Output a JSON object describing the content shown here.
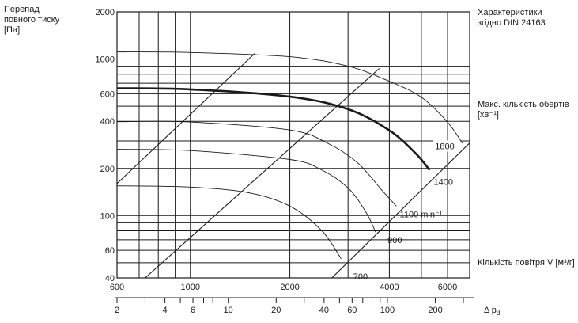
{
  "chart_data": {
    "type": "line",
    "title": "",
    "ylabel": [
      "Перепад",
      "повного тиску",
      "[Па]"
    ],
    "xlabel": "Кількість повітря V [м³/г]",
    "x_scale": "log",
    "y_scale": "log",
    "xlim": [
      600,
      7000
    ],
    "ylim": [
      40,
      2000
    ],
    "x_ticks": [
      {
        "label": "600",
        "value": 600
      },
      {
        "label": "1000",
        "value": 1000
      },
      {
        "label": "2000",
        "value": 2000
      },
      {
        "label": "4000",
        "value": 4000
      },
      {
        "label": "6000",
        "value": 6000
      }
    ],
    "y_ticks": [
      {
        "label": "40",
        "value": 40
      },
      {
        "label": "60",
        "value": 60
      },
      {
        "label": "100",
        "value": 100
      },
      {
        "label": "200",
        "value": 200
      },
      {
        "label": "400",
        "value": 400
      },
      {
        "label": "600",
        "value": 600
      },
      {
        "label": "1000",
        "value": 1000
      },
      {
        "label": "2000",
        "value": 2000
      }
    ],
    "x_grid": [
      700,
      800,
      900,
      1000,
      2000,
      3000,
      4000,
      5000,
      6000
    ],
    "y_grid": [
      50,
      60,
      70,
      80,
      90,
      100,
      200,
      300,
      400,
      500,
      600,
      700,
      800,
      900,
      1000
    ],
    "grid": true,
    "secondary_axis": {
      "label": "Δ p",
      "label_sub": "d",
      "tick_values": [
        2,
        3,
        4,
        5,
        6,
        7,
        8,
        9,
        10,
        20,
        30,
        40,
        50,
        60,
        70,
        80,
        90,
        100,
        200,
        300
      ],
      "labels": [
        {
          "label": "2",
          "value": 2
        },
        {
          "label": "4",
          "value": 4
        },
        {
          "label": "6",
          "value": 6
        },
        {
          "label": "10",
          "value": 10
        },
        {
          "label": "20",
          "value": 20
        },
        {
          "label": "40",
          "value": 40
        },
        {
          "label": "60",
          "value": 60
        },
        {
          "label": "100",
          "value": 100
        },
        {
          "label": "200",
          "value": 200
        }
      ]
    },
    "series": [
      {
        "name": "700",
        "bold": false,
        "points": [
          [
            600,
            155
          ],
          [
            1000,
            152
          ],
          [
            1500,
            140
          ],
          [
            2000,
            115
          ],
          [
            2500,
            80
          ],
          [
            2860,
            53
          ]
        ],
        "label_point": [
          3110,
          41
        ]
      },
      {
        "name": "900",
        "bold": false,
        "points": [
          [
            600,
            265
          ],
          [
            1000,
            260
          ],
          [
            2000,
            228
          ],
          [
            2500,
            195
          ],
          [
            3000,
            150
          ],
          [
            3400,
            105
          ],
          [
            3640,
            78
          ]
        ],
        "label_point": [
          3950,
          70
        ]
      },
      {
        "name": "1100 min⁻¹",
        "bold": false,
        "points": [
          [
            600,
            398
          ],
          [
            1000,
            396
          ],
          [
            2000,
            352
          ],
          [
            2600,
            290
          ],
          [
            3200,
            218
          ],
          [
            3800,
            145
          ],
          [
            4200,
            115
          ]
        ],
        "label_point": [
          4300,
          102
        ]
      },
      {
        "name": "1400",
        "bold": true,
        "points": [
          [
            600,
            650
          ],
          [
            1000,
            640
          ],
          [
            2000,
            575
          ],
          [
            3000,
            478
          ],
          [
            4000,
            350
          ],
          [
            4800,
            250
          ],
          [
            5300,
            195
          ]
        ],
        "label_point": [
          5450,
          165
        ]
      },
      {
        "name": "1800",
        "bold": false,
        "points": [
          [
            600,
            1110
          ],
          [
            1000,
            1100
          ],
          [
            2000,
            1035
          ],
          [
            3000,
            900
          ],
          [
            4000,
            720
          ],
          [
            5000,
            570
          ],
          [
            6000,
            395
          ],
          [
            6650,
            290
          ]
        ],
        "label_point": [
          5500,
          278
        ]
      }
    ],
    "system_lines": [
      {
        "points": [
          [
            600,
            160
          ],
          [
            1570,
            1090
          ]
        ]
      },
      {
        "points": [
          [
            730,
            40
          ],
          [
            3730,
            870
          ]
        ]
      },
      {
        "points": [
          [
            2680,
            40
          ],
          [
            6990,
            290
          ]
        ]
      }
    ],
    "annotations": [
      [
        "Характеристики",
        "згідно DIN 24163"
      ],
      [
        "Макс. кількість обертів",
        "[хв⁻¹]"
      ]
    ]
  }
}
